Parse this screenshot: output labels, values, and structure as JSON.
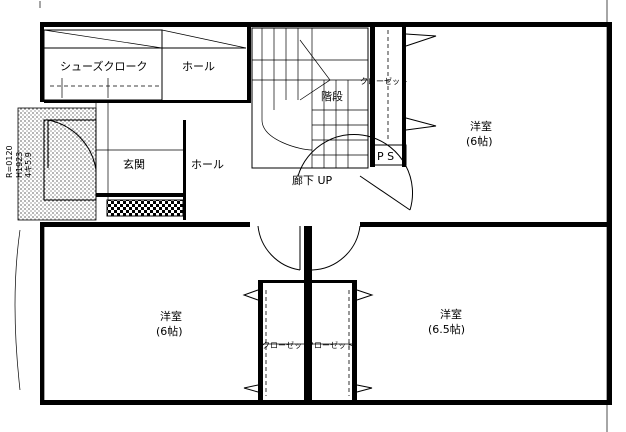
{
  "floor_plan": {
    "rooms": {
      "shoe_closet": "シューズクローク",
      "hall_top": "ホール",
      "stairs": "階段",
      "closet_top": "クローゼット",
      "ps": "P S",
      "entrance": "玄関",
      "hall": "ホール",
      "corridor": "廊下 UP",
      "bedroom_ne": {
        "name": "洋室",
        "size": "(6帖)"
      },
      "bedroom_sw": {
        "name": "洋室",
        "size": "(6帖)"
      },
      "bedroom_se": {
        "name": "洋室",
        "size": "(6.5帖)"
      },
      "closet_left": "クローゼット",
      "closet_right": "クローゼット"
    },
    "side_note": {
      "line1": "R=0120",
      "line2": "H1923",
      "line3": "4キ5.9"
    }
  }
}
